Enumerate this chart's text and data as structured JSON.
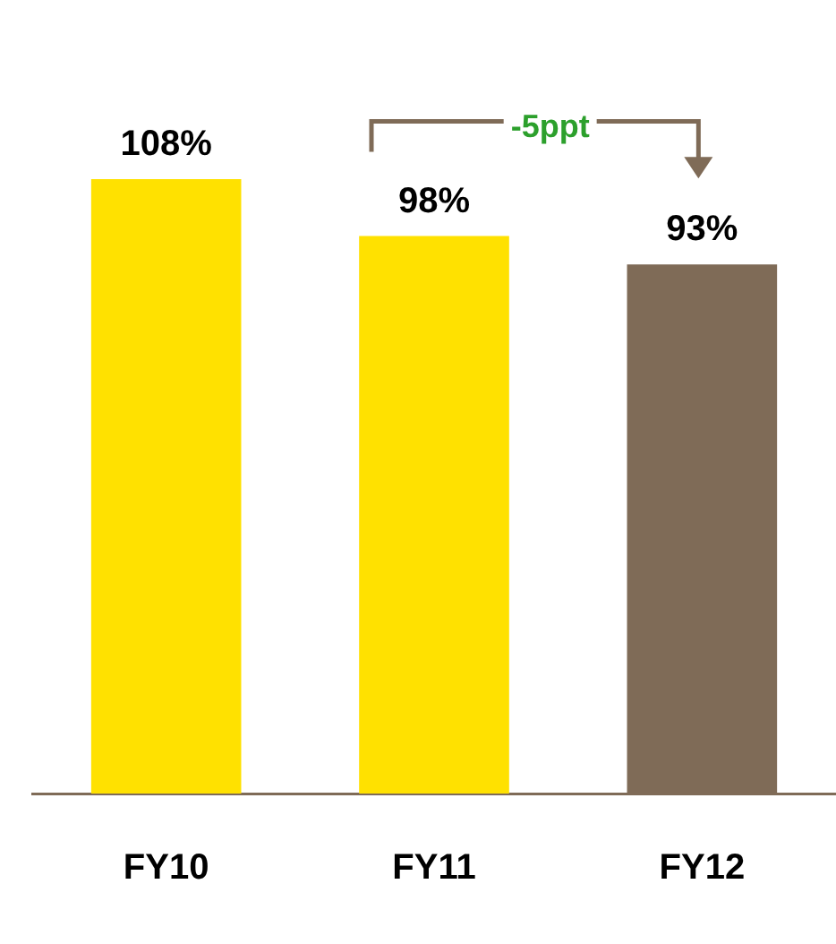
{
  "chart_data": {
    "type": "bar",
    "categories": [
      "FY10",
      "FY11",
      "FY12"
    ],
    "values": [
      108,
      98,
      93
    ],
    "colors": [
      "#ffe100",
      "#ffe100",
      "#7f6b57"
    ],
    "value_labels": [
      "108%",
      "98%",
      "93%"
    ],
    "annotations": [
      "-5ppt"
    ],
    "grid": false,
    "legend": false
  }
}
